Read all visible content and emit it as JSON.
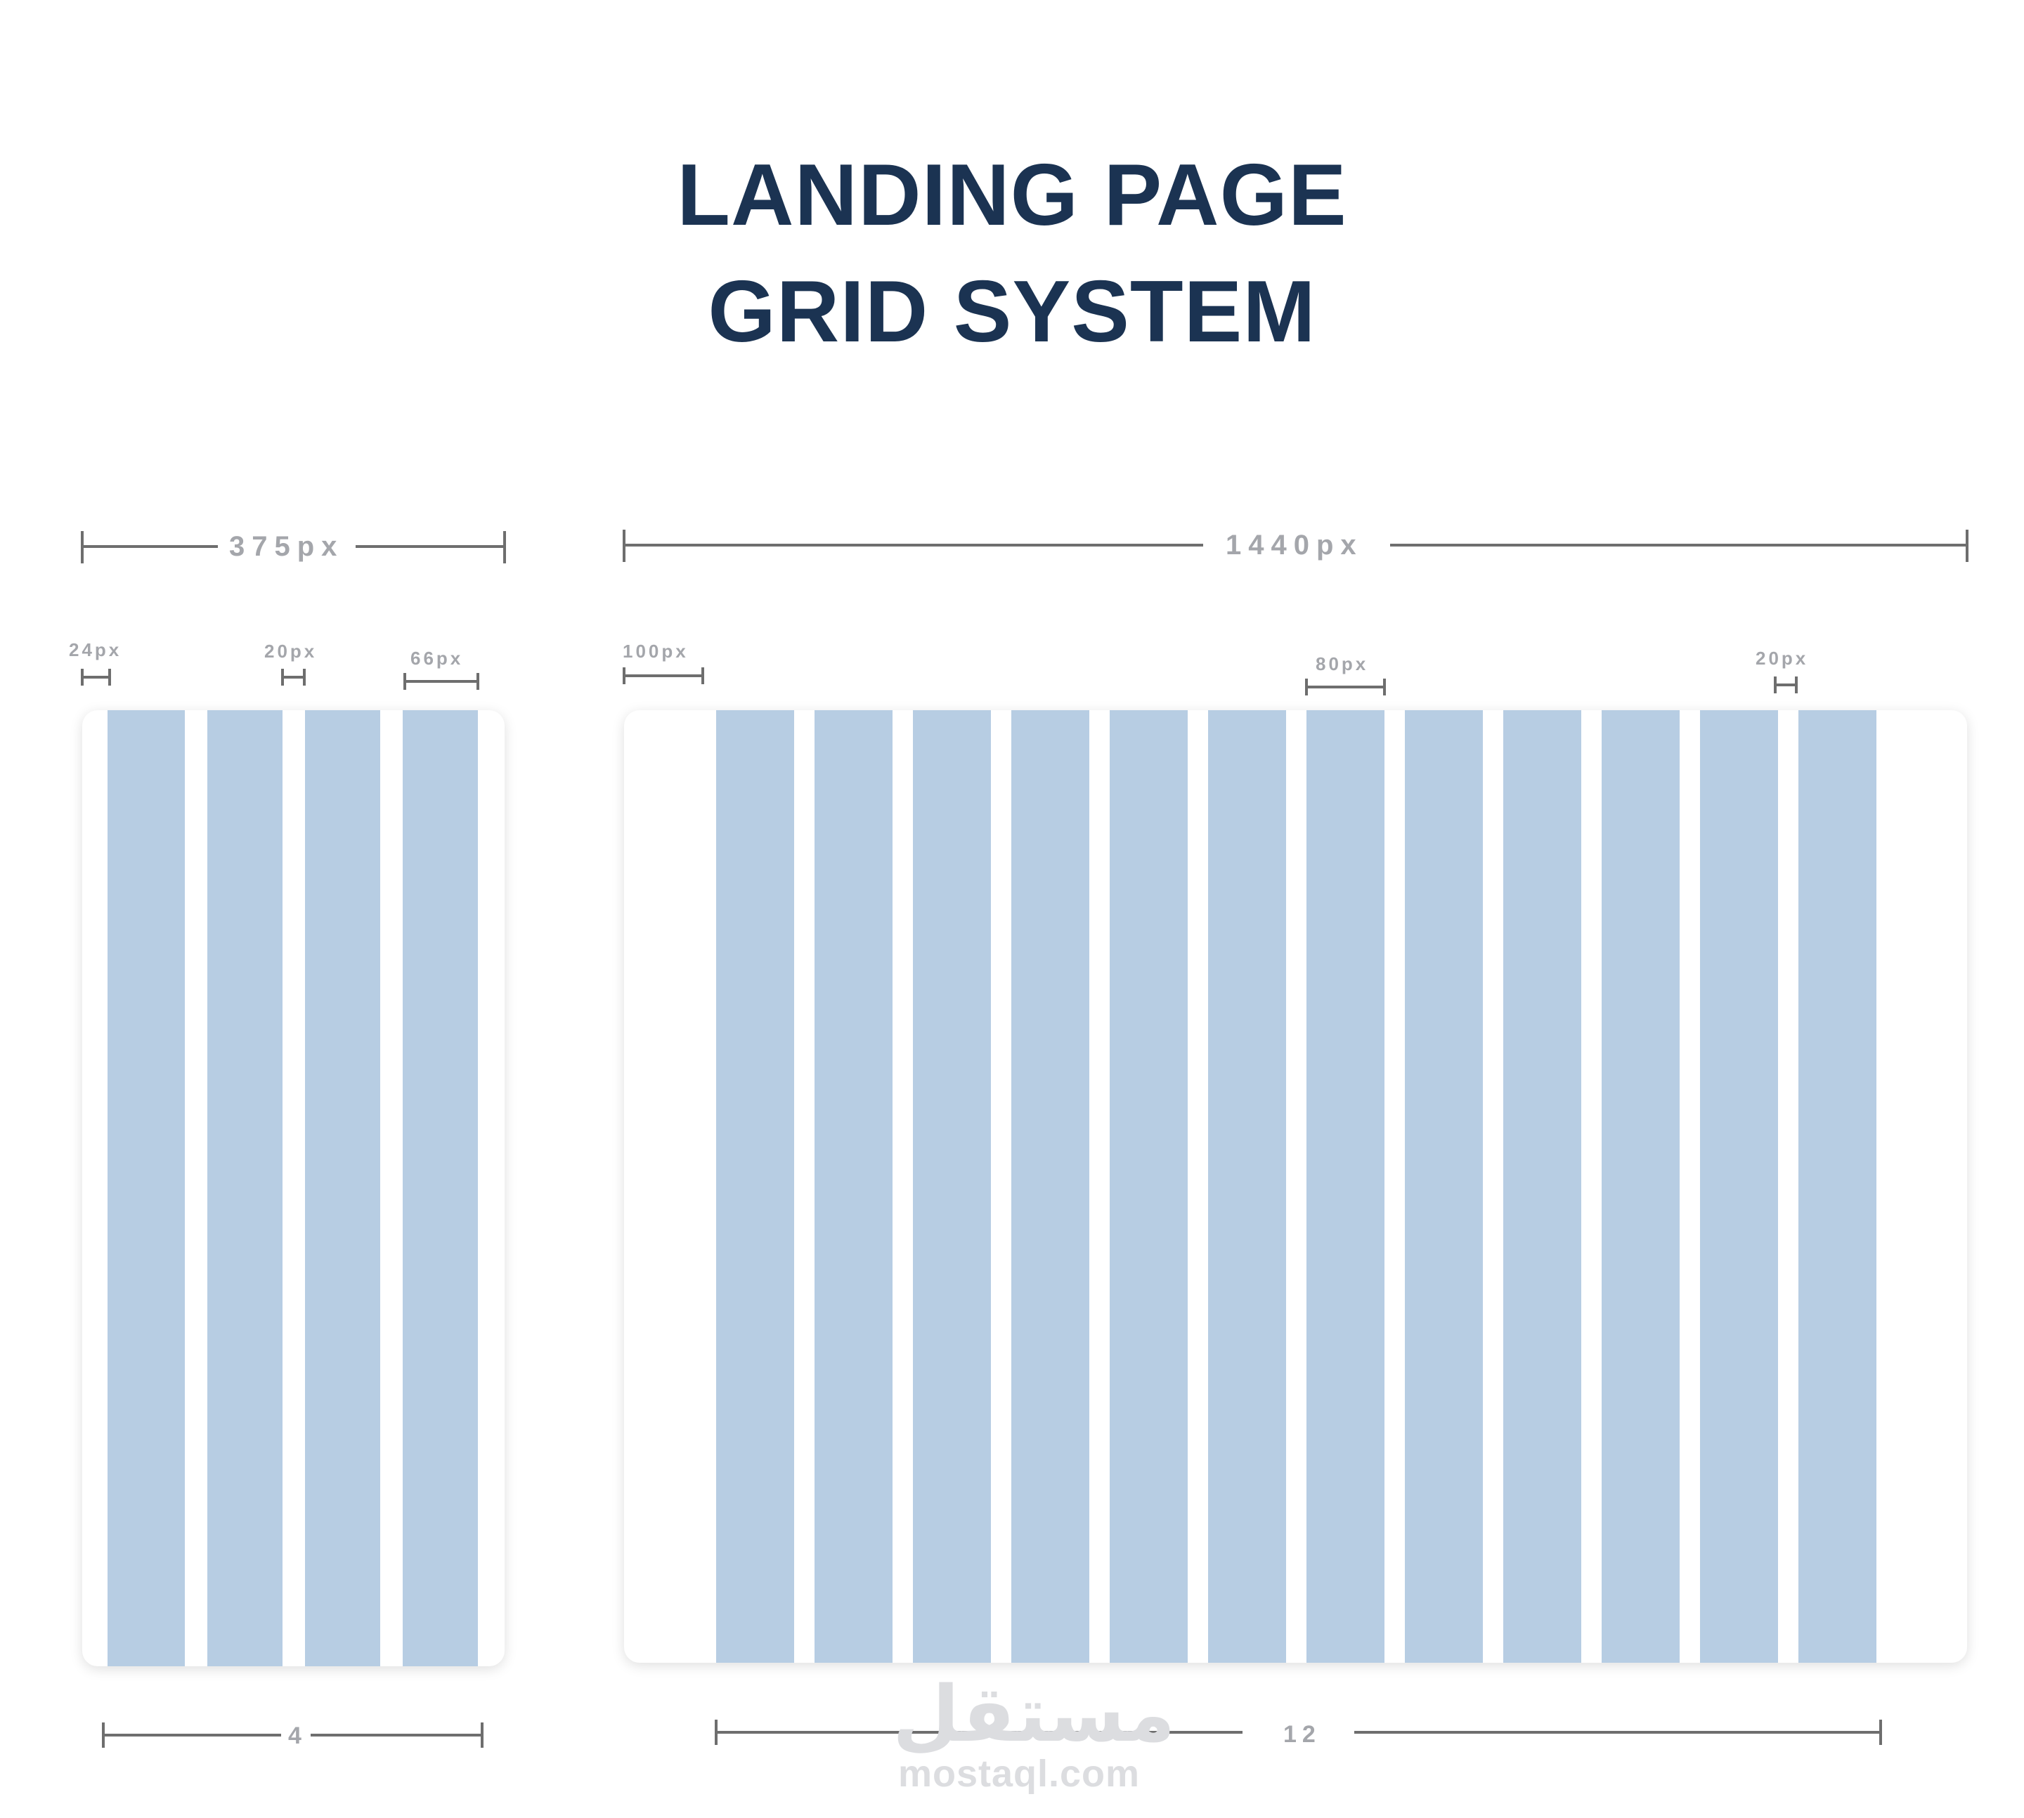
{
  "title": {
    "line1": "LANDING PAGE",
    "line2": "GRID SYSTEM"
  },
  "mobile": {
    "width_label": "375px",
    "margin_label": "24px",
    "gutter_label": "20px",
    "column_label": "66px",
    "columns_label": "4",
    "column_count": 4
  },
  "desktop": {
    "width_label": "1440px",
    "margin_label": "100px",
    "column_label": "80px",
    "gutter_label": "20px",
    "columns_label": "12",
    "column_count": 12
  },
  "colors": {
    "title": "#1b3352",
    "column": "#b7cde3",
    "measure": "#6e6e6e",
    "label": "#a4a6ab"
  },
  "watermark": {
    "glyph": "مستقل",
    "text": "mostaql.com"
  }
}
